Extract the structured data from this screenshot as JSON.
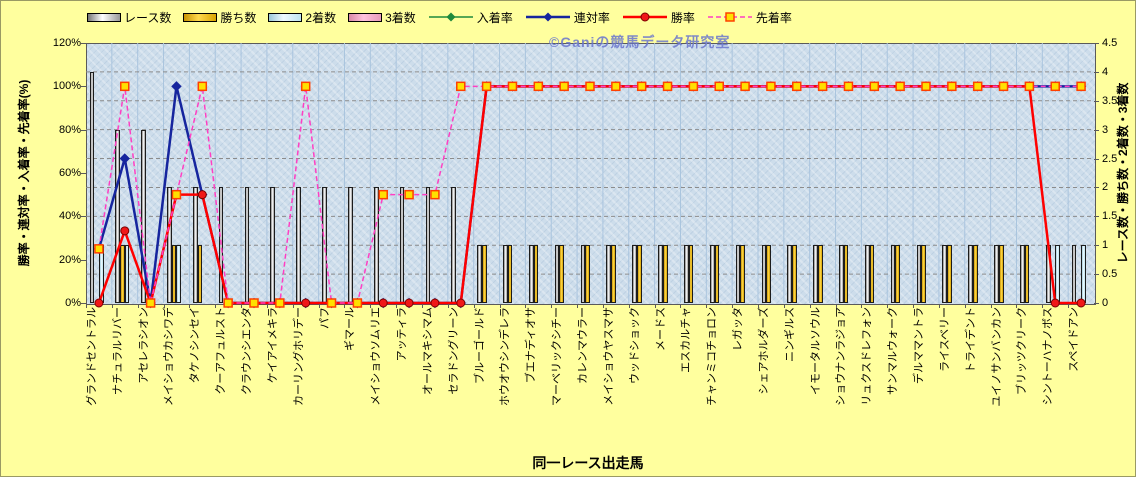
{
  "watermark": {
    "text": "©Ganiの競馬データ研究室"
  },
  "legend": {
    "items": [
      {
        "label": "レース数",
        "kind": "bar"
      },
      {
        "label": "勝ち数",
        "kind": "bar"
      },
      {
        "label": "2着数",
        "kind": "bar"
      },
      {
        "label": "3着数",
        "kind": "bar"
      },
      {
        "label": "入着率",
        "kind": "line"
      },
      {
        "label": "連対率",
        "kind": "line"
      },
      {
        "label": "勝率",
        "kind": "line"
      },
      {
        "label": "先着率",
        "kind": "line"
      }
    ]
  },
  "axes": {
    "left": {
      "title": "勝率・連対率・入着率・先着率(%)",
      "ticks": [
        "0%",
        "20%",
        "40%",
        "60%",
        "80%",
        "100%",
        "120%"
      ]
    },
    "right": {
      "title": "レース数・勝ち数・2着数・3着数",
      "ticks": [
        "0",
        "0.5",
        "1",
        "1.5",
        "2",
        "2.5",
        "3",
        "3.5",
        "4",
        "4.5"
      ]
    },
    "x": {
      "title": "同一レース出走馬"
    }
  },
  "colors": {
    "page_bg": "#ffff9e",
    "plot_bg": "#cdddeb",
    "grid": "#8c8c8c",
    "bar_race": "#ffffff",
    "bar_win": "#ffcc00",
    "bar_second": "#d6f0fa",
    "bar_third": "#ffb3d9",
    "line_place": "#1e8a3c",
    "line_quinella": "#16259e",
    "line_winrate": "#ff0000",
    "line_firstarrival": "#ff3fc3",
    "square_marker_fill": "#ffe000",
    "square_marker_stroke": "#ff4000"
  },
  "chart_data": {
    "type": "composite-bar-line",
    "title": "",
    "xlabel": "同一レース出走馬",
    "ylabel_left": "勝率・連対率・入着率・先着率(%)",
    "ylabel_right": "レース数・勝ち数・2着数・3着数",
    "left_axis_range": [
      0,
      120
    ],
    "right_axis_range": [
      0,
      4.5
    ],
    "grid": "on",
    "legend_position": "top",
    "categories": [
      "グランドセントラル",
      "ナチュラルリバー",
      "アセレラシオン",
      "メイショウカシワデ",
      "タケノシンセイ",
      "クーアフュルスト",
      "クラウンシエンタ",
      "ケイアイメキラ",
      "カーリングホリデー",
      "パフ",
      "ギマール",
      "メイショウソムリエ",
      "アッティラ",
      "オールマキシマム",
      "セラドングリーン",
      "ブルーゴールド",
      "ホウオウシンデレラ",
      "ブエナディオサ",
      "マーベリックシチー",
      "カレンマウラー",
      "メイショウヤスマサ",
      "ウッドショック",
      "メードス",
      "エスカルチャ",
      "チャンミコチョロン",
      "レガッタ",
      "シェアホルダーズ",
      "ニンギルス",
      "イモータルソウル",
      "ショウナンラジョア",
      "リュクスドレフォン",
      "サンマルウォーク",
      "デルママントラ",
      "ライスベリー",
      "トライデント",
      "ユイノサンバンカン",
      "ブリッツクリーク",
      "シントーハナノボス",
      "スペイドアン"
    ],
    "bar_series": [
      {
        "name": "レース数",
        "axis": "right",
        "values": [
          4,
          3,
          3,
          2,
          2,
          2,
          2,
          2,
          2,
          2,
          2,
          2,
          2,
          2,
          2,
          1,
          1,
          1,
          1,
          1,
          1,
          1,
          1,
          1,
          1,
          1,
          1,
          1,
          1,
          1,
          1,
          1,
          1,
          1,
          1,
          1,
          1,
          1,
          1
        ]
      },
      {
        "name": "勝ち数",
        "axis": "right",
        "values": [
          0,
          1,
          0,
          1,
          1,
          0,
          0,
          0,
          0,
          0,
          0,
          0,
          0,
          0,
          0,
          1,
          1,
          1,
          1,
          1,
          1,
          1,
          1,
          1,
          1,
          1,
          1,
          1,
          1,
          1,
          1,
          1,
          1,
          1,
          1,
          1,
          1,
          0,
          0
        ]
      },
      {
        "name": "2着数",
        "axis": "right",
        "values": [
          1,
          1,
          0,
          1,
          0,
          0,
          0,
          0,
          0,
          0,
          0,
          0,
          0,
          0,
          0,
          0,
          0,
          0,
          0,
          0,
          0,
          0,
          0,
          0,
          0,
          0,
          0,
          0,
          0,
          0,
          0,
          0,
          0,
          0,
          0,
          0,
          0,
          1,
          1
        ]
      },
      {
        "name": "3着数",
        "axis": "right",
        "values": [
          0,
          0,
          0,
          0,
          0,
          0,
          0,
          0,
          0,
          0,
          0,
          0,
          0,
          0,
          0,
          0,
          0,
          0,
          0,
          0,
          0,
          0,
          0,
          0,
          0,
          0,
          0,
          0,
          0,
          0,
          0,
          0,
          0,
          0,
          0,
          0,
          0,
          0,
          0
        ]
      }
    ],
    "line_series": [
      {
        "name": "入着率",
        "axis": "left",
        "color": "#1e8a3c",
        "width": 1.5,
        "dash": "",
        "marker": "diamond-small",
        "values": [
          25,
          66.7,
          0,
          100,
          50,
          0,
          0,
          0,
          0,
          0,
          0,
          0,
          0,
          0,
          0,
          100,
          100,
          100,
          100,
          100,
          100,
          100,
          100,
          100,
          100,
          100,
          100,
          100,
          100,
          100,
          100,
          100,
          100,
          100,
          100,
          100,
          100,
          100,
          100
        ]
      },
      {
        "name": "連対率",
        "axis": "left",
        "color": "#16259e",
        "width": 2.5,
        "dash": "",
        "marker": "diamond",
        "values": [
          25,
          66.7,
          0,
          100,
          50,
          0,
          0,
          0,
          0,
          0,
          0,
          0,
          0,
          0,
          0,
          100,
          100,
          100,
          100,
          100,
          100,
          100,
          100,
          100,
          100,
          100,
          100,
          100,
          100,
          100,
          100,
          100,
          100,
          100,
          100,
          100,
          100,
          100,
          100
        ]
      },
      {
        "name": "勝率",
        "axis": "left",
        "color": "#ff0000",
        "width": 2.5,
        "dash": "",
        "marker": "circle",
        "values": [
          0,
          33.3,
          0,
          50,
          50,
          0,
          0,
          0,
          0,
          0,
          0,
          0,
          0,
          0,
          0,
          100,
          100,
          100,
          100,
          100,
          100,
          100,
          100,
          100,
          100,
          100,
          100,
          100,
          100,
          100,
          100,
          100,
          100,
          100,
          100,
          100,
          100,
          0,
          0
        ]
      },
      {
        "name": "先着率",
        "axis": "left",
        "color": "#ff3fc3",
        "width": 1.5,
        "dash": "5 3",
        "marker": "square",
        "values": [
          25,
          100,
          0,
          50,
          100,
          0,
          0,
          0,
          100,
          0,
          0,
          50,
          50,
          50,
          100,
          100,
          100,
          100,
          100,
          100,
          100,
          100,
          100,
          100,
          100,
          100,
          100,
          100,
          100,
          100,
          100,
          100,
          100,
          100,
          100,
          100,
          100,
          100,
          100
        ]
      }
    ]
  }
}
